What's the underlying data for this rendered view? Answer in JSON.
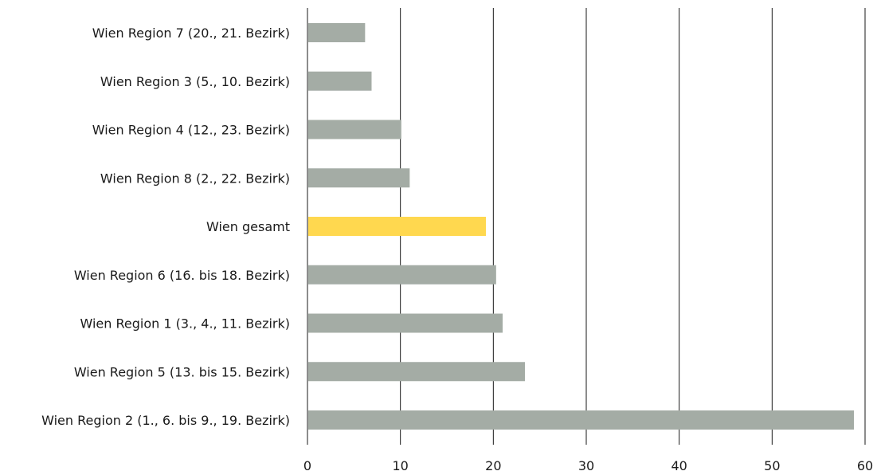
{
  "chart_data": {
    "type": "bar",
    "orientation": "horizontal",
    "categories": [
      "Wien Region 7 (20., 21. Bezirk)",
      "Wien Region 3 (5., 10. Bezirk)",
      "Wien Region 4 (12., 23. Bezirk)",
      "Wien Region 8 (2., 22. Bezirk)",
      "Wien gesamt",
      "Wien Region 6 (16. bis 18. Bezirk)",
      "Wien Region 1 (3., 4., 11. Bezirk)",
      "Wien Region 5 (13. bis 15. Bezirk)",
      "Wien Region 2 (1., 6. bis 9., 19. Bezirk)"
    ],
    "values": [
      6.2,
      6.9,
      10.1,
      11.0,
      19.2,
      20.3,
      21.0,
      23.4,
      58.8
    ],
    "highlight_category": "Wien gesamt",
    "xlim": [
      0,
      60
    ],
    "xticks": [
      0,
      10,
      20,
      30,
      40,
      50,
      60
    ],
    "grid": "vertical",
    "legend": "none",
    "title": "",
    "xlabel": "",
    "ylabel": "",
    "colors": {
      "bar": "#a4aca5",
      "highlight": "#ffd84f",
      "grid": "#1a1a1a"
    }
  }
}
